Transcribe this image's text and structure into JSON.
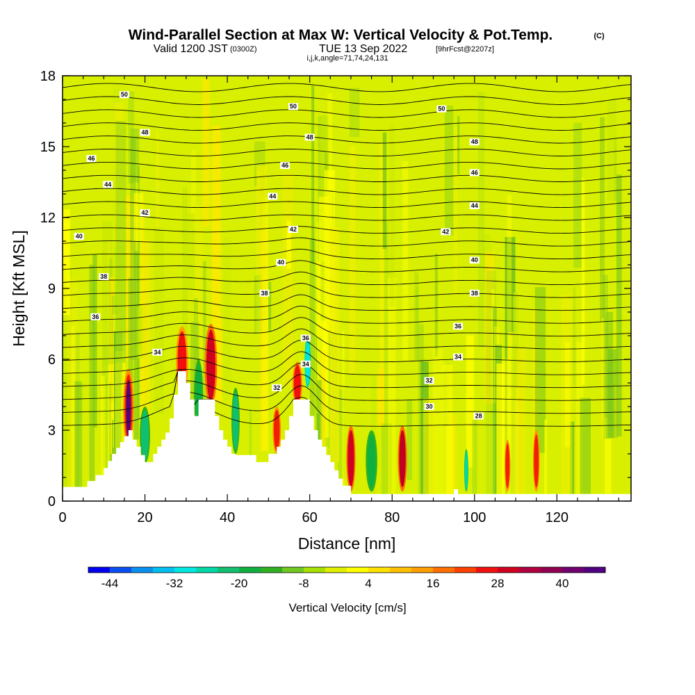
{
  "chart_data": {
    "type": "heatmap",
    "title": "Wind-Parallel Section at Max W: Vertical Velocity & Pot.Temp.",
    "title_mark": "(C)",
    "subtitle_main": "Valid 1200 JST",
    "subtitle_utc": "(0300Z)",
    "subtitle_date": "TUE 13 Sep 2022",
    "subtitle_run": "[9hrFcst@2207z]",
    "subtitle_2": "i,j,k,angle=71,74,24,131",
    "xlabel": "Distance [nm]",
    "ylabel": "Height [Kft MSL]",
    "xlim": [
      0,
      138
    ],
    "ylim": [
      0,
      18
    ],
    "x_ticks": [
      "0",
      "20",
      "40",
      "60",
      "80",
      "100",
      "120"
    ],
    "y_ticks": [
      "0",
      "3",
      "6",
      "9",
      "12",
      "15",
      "18"
    ],
    "colorbar": {
      "label": "Vertical Velocity [cm/s]",
      "tick_labels": [
        "-44",
        "-32",
        "-20",
        "-8",
        "4",
        "16",
        "28",
        "40"
      ],
      "colors": [
        "#0000f0",
        "#0a50f0",
        "#0a90f0",
        "#00c0f0",
        "#00e8e0",
        "#00d8a8",
        "#10c070",
        "#10b040",
        "#30b020",
        "#70c820",
        "#a8e000",
        "#e0f000",
        "#ffff00",
        "#ffe000",
        "#ffc000",
        "#ffa000",
        "#ff7000",
        "#ff4000",
        "#f01010",
        "#d00020",
        "#b00040",
        "#900050",
        "#700070",
        "#500080"
      ]
    },
    "terrain": [
      [
        0,
        0.6
      ],
      [
        6,
        0.6
      ],
      [
        6,
        0.85
      ],
      [
        8,
        0.85
      ],
      [
        8,
        1.1
      ],
      [
        10,
        1.1
      ],
      [
        10,
        1.4
      ],
      [
        11,
        1.4
      ],
      [
        11,
        1.7
      ],
      [
        12,
        1.7
      ],
      [
        12,
        2.0
      ],
      [
        13,
        2.0
      ],
      [
        13,
        2.25
      ],
      [
        14,
        2.25
      ],
      [
        14,
        2.5
      ],
      [
        15,
        2.5
      ],
      [
        15,
        2.75
      ],
      [
        16,
        2.75
      ],
      [
        16,
        3.0
      ],
      [
        17,
        3.0
      ],
      [
        17,
        2.6
      ],
      [
        18,
        2.6
      ],
      [
        18,
        2.3
      ],
      [
        19,
        2.3
      ],
      [
        19,
        1.95
      ],
      [
        20,
        1.95
      ],
      [
        20,
        1.65
      ],
      [
        22,
        1.65
      ],
      [
        22,
        2.0
      ],
      [
        23,
        2.0
      ],
      [
        23,
        2.3
      ],
      [
        24,
        2.3
      ],
      [
        24,
        2.6
      ],
      [
        25,
        2.6
      ],
      [
        25,
        2.9
      ],
      [
        26,
        2.9
      ],
      [
        26,
        3.5
      ],
      [
        27,
        3.5
      ],
      [
        27,
        4.5
      ],
      [
        28,
        4.5
      ],
      [
        28,
        5.5
      ],
      [
        30,
        5.5
      ],
      [
        30,
        5.0
      ],
      [
        31,
        5.0
      ],
      [
        31,
        4.3
      ],
      [
        32,
        4.3
      ],
      [
        32,
        3.6
      ],
      [
        33,
        3.6
      ],
      [
        33,
        4.3
      ],
      [
        37,
        4.3
      ],
      [
        37,
        3.6
      ],
      [
        38,
        3.6
      ],
      [
        38,
        3.0
      ],
      [
        39,
        3.0
      ],
      [
        39,
        2.6
      ],
      [
        40,
        2.6
      ],
      [
        40,
        2.3
      ],
      [
        41,
        2.3
      ],
      [
        41,
        2.0
      ],
      [
        42,
        2.0
      ],
      [
        42,
        1.95
      ],
      [
        47,
        1.95
      ],
      [
        47,
        1.65
      ],
      [
        50,
        1.65
      ],
      [
        50,
        2.0
      ],
      [
        52,
        2.0
      ],
      [
        52,
        2.3
      ],
      [
        53,
        2.3
      ],
      [
        53,
        2.6
      ],
      [
        54,
        2.6
      ],
      [
        54,
        3.0
      ],
      [
        55,
        3.0
      ],
      [
        55,
        3.6
      ],
      [
        56,
        3.6
      ],
      [
        56,
        4.3
      ],
      [
        60,
        4.3
      ],
      [
        60,
        3.6
      ],
      [
        61,
        3.6
      ],
      [
        61,
        3.0
      ],
      [
        62,
        3.0
      ],
      [
        62,
        2.6
      ],
      [
        63,
        2.6
      ],
      [
        63,
        2.3
      ],
      [
        64,
        2.3
      ],
      [
        64,
        1.95
      ],
      [
        65,
        1.95
      ],
      [
        65,
        1.65
      ],
      [
        66,
        1.65
      ],
      [
        66,
        1.3
      ],
      [
        67,
        1.3
      ],
      [
        67,
        0.95
      ],
      [
        68,
        0.95
      ],
      [
        68,
        0.65
      ],
      [
        70,
        0.65
      ],
      [
        70,
        0.3
      ],
      [
        95,
        0.3
      ],
      [
        95,
        0.5
      ],
      [
        96,
        0.5
      ],
      [
        96,
        0.3
      ],
      [
        138,
        0.3
      ]
    ],
    "contour_labels": [
      {
        "text": "50",
        "x": 15,
        "y": 17.2
      },
      {
        "text": "50",
        "x": 56,
        "y": 16.7
      },
      {
        "text": "50",
        "x": 92,
        "y": 16.6
      },
      {
        "text": "48",
        "x": 20,
        "y": 15.6
      },
      {
        "text": "48",
        "x": 60,
        "y": 15.4
      },
      {
        "text": "48",
        "x": 100,
        "y": 15.2
      },
      {
        "text": "46",
        "x": 7,
        "y": 14.5
      },
      {
        "text": "46",
        "x": 54,
        "y": 14.2
      },
      {
        "text": "46",
        "x": 100,
        "y": 13.9
      },
      {
        "text": "44",
        "x": 11,
        "y": 13.4
      },
      {
        "text": "44",
        "x": 51,
        "y": 12.9
      },
      {
        "text": "44",
        "x": 100,
        "y": 12.5
      },
      {
        "text": "42",
        "x": 20,
        "y": 12.2
      },
      {
        "text": "42",
        "x": 56,
        "y": 11.5
      },
      {
        "text": "42",
        "x": 93,
        "y": 11.4
      },
      {
        "text": "40",
        "x": 4,
        "y": 11.2
      },
      {
        "text": "40",
        "x": 53,
        "y": 10.1
      },
      {
        "text": "40",
        "x": 100,
        "y": 10.2
      },
      {
        "text": "38",
        "x": 10,
        "y": 9.5
      },
      {
        "text": "38",
        "x": 49,
        "y": 8.8
      },
      {
        "text": "38",
        "x": 100,
        "y": 8.8
      },
      {
        "text": "36",
        "x": 8,
        "y": 7.8
      },
      {
        "text": "36",
        "x": 59,
        "y": 6.9
      },
      {
        "text": "36",
        "x": 96,
        "y": 7.4
      },
      {
        "text": "34",
        "x": 23,
        "y": 6.3
      },
      {
        "text": "34",
        "x": 59,
        "y": 5.8
      },
      {
        "text": "34",
        "x": 96,
        "y": 6.1
      },
      {
        "text": "32",
        "x": 52,
        "y": 4.8
      },
      {
        "text": "32",
        "x": 89,
        "y": 5.1
      },
      {
        "text": "30",
        "x": 89,
        "y": 4.0
      },
      {
        "text": "28",
        "x": 101,
        "y": 3.6
      }
    ]
  }
}
